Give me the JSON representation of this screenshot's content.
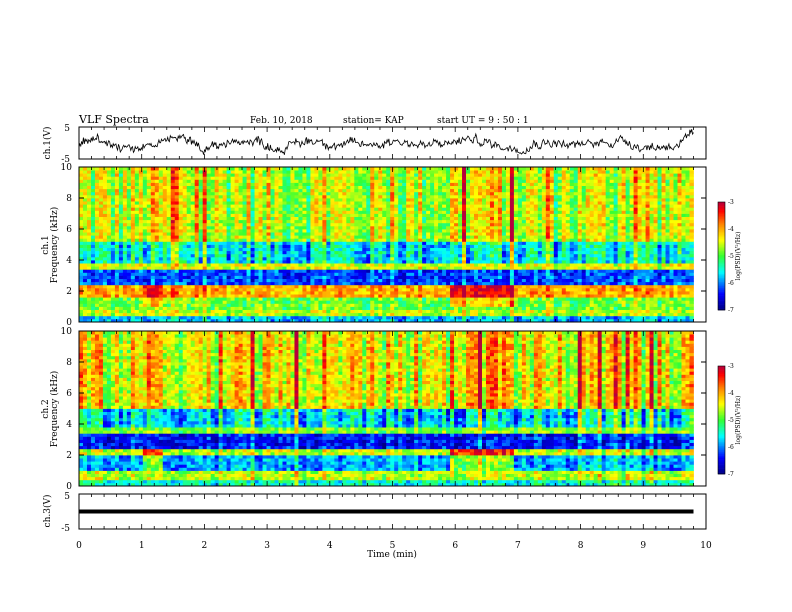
{
  "header": {
    "title": "VLF Spectra",
    "date": "Feb. 10, 2018",
    "station": "station= KAP",
    "start": "start UT =  9 : 50 : 1"
  },
  "colorbar": {
    "label": "log(PSD)(V²/Hz)",
    "ticks": [
      "-3",
      "-4",
      "-5",
      "-6",
      "-7"
    ],
    "colors": [
      "#ff00ff",
      "#ff0000",
      "#ffcc00",
      "#ffff00",
      "#33ff33",
      "#00ffcc",
      "#0000ff",
      "#000080"
    ]
  },
  "chart_data": [
    {
      "type": "line",
      "name": "ch1-voltage",
      "ylabel": "ch.1(V)",
      "ylim": [
        -5,
        5
      ],
      "yticks": [
        "5",
        "-5"
      ],
      "xlim": [
        0,
        10
      ],
      "description_values": {
        "mean": 0,
        "amplitude": 3
      },
      "color": "#000000"
    },
    {
      "type": "heatmap",
      "name": "ch1-spectrogram",
      "ylabel": "ch.1",
      "ylabel2": "Frequency (kHz)",
      "ylim": [
        0,
        10
      ],
      "yticks": [
        "0",
        "2",
        "4",
        "6",
        "8",
        "10"
      ],
      "xlim": [
        0,
        10
      ],
      "zlim": [
        -7,
        -3
      ],
      "bands": [
        {
          "f0": 0.0,
          "f1": 0.4,
          "level": -5.8
        },
        {
          "f0": 0.4,
          "f1": 0.8,
          "level": -4.6
        },
        {
          "f0": 0.8,
          "f1": 1.7,
          "level": -4.9
        },
        {
          "f0": 1.7,
          "f1": 2.5,
          "level": -4.0
        },
        {
          "f0": 2.5,
          "f1": 3.4,
          "level": -6.2
        },
        {
          "f0": 3.4,
          "f1": 3.8,
          "level": -4.5
        },
        {
          "f0": 3.8,
          "f1": 5.2,
          "level": -5.6
        },
        {
          "f0": 5.2,
          "f1": 10.0,
          "level": -4.6
        }
      ],
      "segments_min": [
        {
          "t0": 0.0,
          "t1": 1.05,
          "shift": 0
        },
        {
          "t0": 1.05,
          "t1": 1.35,
          "shift": 0.8
        },
        {
          "t0": 1.35,
          "t1": 5.95,
          "shift": 0
        },
        {
          "t0": 5.95,
          "t1": 6.95,
          "shift": 0.8
        },
        {
          "t0": 6.95,
          "t1": 9.8,
          "shift": 0
        }
      ]
    },
    {
      "type": "heatmap",
      "name": "ch2-spectrogram",
      "ylabel": "ch.2",
      "ylabel2": "Frequency (kHz)",
      "ylim": [
        0,
        10
      ],
      "yticks": [
        "0",
        "2",
        "4",
        "6",
        "8",
        "10"
      ],
      "xlim": [
        0,
        10
      ],
      "zlim": [
        -7,
        -3
      ],
      "bands": [
        {
          "f0": 0.0,
          "f1": 0.5,
          "level": -5.5
        },
        {
          "f0": 0.5,
          "f1": 1.0,
          "level": -4.6
        },
        {
          "f0": 1.0,
          "f1": 2.1,
          "level": -5.9
        },
        {
          "f0": 2.1,
          "f1": 2.5,
          "level": -4.6
        },
        {
          "f0": 2.5,
          "f1": 3.4,
          "level": -6.4
        },
        {
          "f0": 3.4,
          "f1": 3.8,
          "level": -4.8
        },
        {
          "f0": 3.8,
          "f1": 5.0,
          "level": -5.7
        },
        {
          "f0": 5.0,
          "f1": 10.0,
          "level": -4.4
        }
      ],
      "segments_min": [
        {
          "t0": 0.0,
          "t1": 1.05,
          "shift": 0
        },
        {
          "t0": 1.05,
          "t1": 1.35,
          "shift": 1.2
        },
        {
          "t0": 1.35,
          "t1": 5.95,
          "shift": 0
        },
        {
          "t0": 5.95,
          "t1": 6.95,
          "shift": 1.2
        },
        {
          "t0": 6.95,
          "t1": 9.8,
          "shift": 0
        }
      ]
    },
    {
      "type": "line",
      "name": "ch3-voltage",
      "ylabel": "ch.3(V)",
      "ylim": [
        -5,
        5
      ],
      "yticks": [
        "5",
        "-5"
      ],
      "xlim": [
        0,
        10
      ],
      "values_flat": 0,
      "color": "#000000"
    }
  ],
  "xaxis": {
    "label": "Time (min)",
    "ticks": [
      "0",
      "1",
      "2",
      "3",
      "4",
      "5",
      "6",
      "7",
      "8",
      "9",
      "10"
    ],
    "data_end": 9.8
  }
}
